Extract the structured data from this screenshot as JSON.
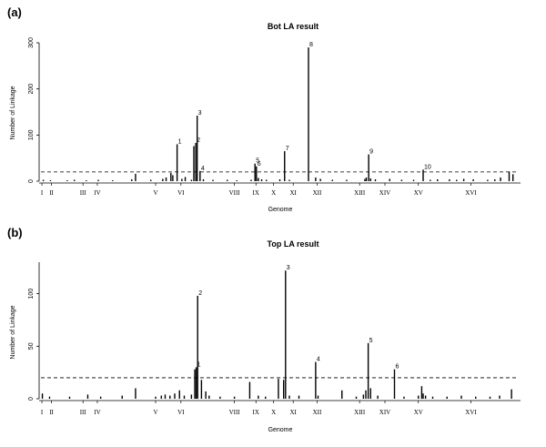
{
  "chart_data": [
    {
      "panel": "(a)",
      "type": "bar",
      "title": "Bot LA result",
      "xlabel": "Genome",
      "ylabel": "Number of Linkage",
      "ylim": [
        0,
        300
      ],
      "yticks": [
        0,
        100,
        200,
        300
      ],
      "xlim": [
        0,
        1000
      ],
      "threshold": 20,
      "chromosomes": [
        {
          "label": "I",
          "x": 2
        },
        {
          "label": "II",
          "x": 22
        },
        {
          "label": "III",
          "x": 88
        },
        {
          "label": "IV",
          "x": 118
        },
        {
          "label": "V",
          "x": 240
        },
        {
          "label": "VI",
          "x": 293
        },
        {
          "label": "VIII",
          "x": 405
        },
        {
          "label": "IX",
          "x": 450
        },
        {
          "label": "X",
          "x": 487
        },
        {
          "label": "XI",
          "x": 528
        },
        {
          "label": "XII",
          "x": 578
        },
        {
          "label": "XIII",
          "x": 667
        },
        {
          "label": "XIV",
          "x": 720
        },
        {
          "label": "XV",
          "x": 790
        },
        {
          "label": "XVI",
          "x": 900
        }
      ],
      "bars": [
        {
          "x": 5,
          "y": 3
        },
        {
          "x": 20,
          "y": 2
        },
        {
          "x": 55,
          "y": 2
        },
        {
          "x": 70,
          "y": 3
        },
        {
          "x": 95,
          "y": 2
        },
        {
          "x": 120,
          "y": 3
        },
        {
          "x": 150,
          "y": 2
        },
        {
          "x": 190,
          "y": 4
        },
        {
          "x": 198,
          "y": 16
        },
        {
          "x": 230,
          "y": 3
        },
        {
          "x": 255,
          "y": 5
        },
        {
          "x": 262,
          "y": 8
        },
        {
          "x": 272,
          "y": 18
        },
        {
          "x": 276,
          "y": 13
        },
        {
          "x": 285,
          "y": 80
        },
        {
          "x": 295,
          "y": 5
        },
        {
          "x": 302,
          "y": 9
        },
        {
          "x": 315,
          "y": 3
        },
        {
          "x": 320,
          "y": 76
        },
        {
          "x": 324,
          "y": 83
        },
        {
          "x": 327,
          "y": 142
        },
        {
          "x": 333,
          "y": 22
        },
        {
          "x": 340,
          "y": 4
        },
        {
          "x": 360,
          "y": 3
        },
        {
          "x": 390,
          "y": 3
        },
        {
          "x": 410,
          "y": 2
        },
        {
          "x": 440,
          "y": 3
        },
        {
          "x": 448,
          "y": 38
        },
        {
          "x": 451,
          "y": 32
        },
        {
          "x": 455,
          "y": 7
        },
        {
          "x": 462,
          "y": 4
        },
        {
          "x": 472,
          "y": 3
        },
        {
          "x": 500,
          "y": 4
        },
        {
          "x": 510,
          "y": 65
        },
        {
          "x": 520,
          "y": 3
        },
        {
          "x": 560,
          "y": 290
        },
        {
          "x": 575,
          "y": 8
        },
        {
          "x": 585,
          "y": 5
        },
        {
          "x": 610,
          "y": 3
        },
        {
          "x": 640,
          "y": 3
        },
        {
          "x": 678,
          "y": 5
        },
        {
          "x": 681,
          "y": 8
        },
        {
          "x": 686,
          "y": 58
        },
        {
          "x": 690,
          "y": 6
        },
        {
          "x": 700,
          "y": 4
        },
        {
          "x": 730,
          "y": 5
        },
        {
          "x": 755,
          "y": 3
        },
        {
          "x": 780,
          "y": 3
        },
        {
          "x": 800,
          "y": 25
        },
        {
          "x": 815,
          "y": 3
        },
        {
          "x": 830,
          "y": 4
        },
        {
          "x": 855,
          "y": 4
        },
        {
          "x": 870,
          "y": 3
        },
        {
          "x": 885,
          "y": 5
        },
        {
          "x": 905,
          "y": 4
        },
        {
          "x": 935,
          "y": 3
        },
        {
          "x": 950,
          "y": 4
        },
        {
          "x": 962,
          "y": 8
        },
        {
          "x": 980,
          "y": 21
        },
        {
          "x": 988,
          "y": 15
        }
      ],
      "annotations": [
        {
          "text": "1",
          "x": 285,
          "y": 80
        },
        {
          "text": "2",
          "x": 324,
          "y": 83
        },
        {
          "text": "3",
          "x": 327,
          "y": 142
        },
        {
          "text": "4",
          "x": 333,
          "y": 22
        },
        {
          "text": "5",
          "x": 448,
          "y": 38
        },
        {
          "text": "6",
          "x": 451,
          "y": 32
        },
        {
          "text": "7",
          "x": 510,
          "y": 65
        },
        {
          "text": "8",
          "x": 560,
          "y": 290
        },
        {
          "text": "9",
          "x": 686,
          "y": 58
        },
        {
          "text": "10",
          "x": 800,
          "y": 25
        }
      ]
    },
    {
      "panel": "(b)",
      "type": "bar",
      "title": "Top LA result",
      "xlabel": "Genome",
      "ylabel": "Number of Linkage",
      "ylim": [
        0,
        130
      ],
      "yticks": [
        0,
        50,
        100
      ],
      "xlim": [
        0,
        1000
      ],
      "threshold": 20,
      "chromosomes": [
        {
          "label": "I",
          "x": 2
        },
        {
          "label": "II",
          "x": 22
        },
        {
          "label": "III",
          "x": 88
        },
        {
          "label": "IV",
          "x": 118
        },
        {
          "label": "V",
          "x": 240
        },
        {
          "label": "VI",
          "x": 293
        },
        {
          "label": "VIII",
          "x": 405
        },
        {
          "label": "IX",
          "x": 450
        },
        {
          "label": "X",
          "x": 487
        },
        {
          "label": "XI",
          "x": 528
        },
        {
          "label": "XII",
          "x": 578
        },
        {
          "label": "XIII",
          "x": 667
        },
        {
          "label": "XIV",
          "x": 720
        },
        {
          "label": "XV",
          "x": 790
        },
        {
          "label": "XVI",
          "x": 900
        }
      ],
      "bars": [
        {
          "x": 3,
          "y": 5
        },
        {
          "x": 18,
          "y": 2
        },
        {
          "x": 60,
          "y": 2
        },
        {
          "x": 98,
          "y": 4
        },
        {
          "x": 125,
          "y": 2
        },
        {
          "x": 170,
          "y": 3
        },
        {
          "x": 198,
          "y": 10
        },
        {
          "x": 240,
          "y": 2
        },
        {
          "x": 252,
          "y": 3
        },
        {
          "x": 260,
          "y": 4
        },
        {
          "x": 270,
          "y": 3
        },
        {
          "x": 280,
          "y": 5
        },
        {
          "x": 290,
          "y": 8
        },
        {
          "x": 300,
          "y": 3
        },
        {
          "x": 315,
          "y": 4
        },
        {
          "x": 322,
          "y": 28
        },
        {
          "x": 325,
          "y": 30
        },
        {
          "x": 328,
          "y": 98
        },
        {
          "x": 336,
          "y": 18
        },
        {
          "x": 345,
          "y": 7
        },
        {
          "x": 352,
          "y": 3
        },
        {
          "x": 375,
          "y": 2
        },
        {
          "x": 405,
          "y": 2
        },
        {
          "x": 437,
          "y": 16
        },
        {
          "x": 455,
          "y": 3
        },
        {
          "x": 470,
          "y": 2
        },
        {
          "x": 497,
          "y": 19
        },
        {
          "x": 508,
          "y": 18
        },
        {
          "x": 512,
          "y": 122
        },
        {
          "x": 520,
          "y": 3
        },
        {
          "x": 540,
          "y": 3
        },
        {
          "x": 575,
          "y": 35
        },
        {
          "x": 580,
          "y": 3
        },
        {
          "x": 630,
          "y": 8
        },
        {
          "x": 660,
          "y": 2
        },
        {
          "x": 675,
          "y": 4
        },
        {
          "x": 680,
          "y": 8
        },
        {
          "x": 685,
          "y": 53
        },
        {
          "x": 690,
          "y": 10
        },
        {
          "x": 705,
          "y": 3
        },
        {
          "x": 740,
          "y": 28
        },
        {
          "x": 760,
          "y": 2
        },
        {
          "x": 790,
          "y": 3
        },
        {
          "x": 797,
          "y": 12
        },
        {
          "x": 800,
          "y": 5
        },
        {
          "x": 805,
          "y": 3
        },
        {
          "x": 820,
          "y": 2
        },
        {
          "x": 850,
          "y": 2
        },
        {
          "x": 880,
          "y": 3
        },
        {
          "x": 910,
          "y": 2
        },
        {
          "x": 940,
          "y": 2
        },
        {
          "x": 960,
          "y": 3
        },
        {
          "x": 985,
          "y": 9
        }
      ],
      "annotations": [
        {
          "text": "1",
          "x": 325,
          "y": 30
        },
        {
          "text": "2",
          "x": 328,
          "y": 98
        },
        {
          "text": "3",
          "x": 512,
          "y": 122
        },
        {
          "text": "4",
          "x": 575,
          "y": 35
        },
        {
          "text": "5",
          "x": 685,
          "y": 53
        },
        {
          "text": "6",
          "x": 740,
          "y": 28
        }
      ]
    }
  ]
}
